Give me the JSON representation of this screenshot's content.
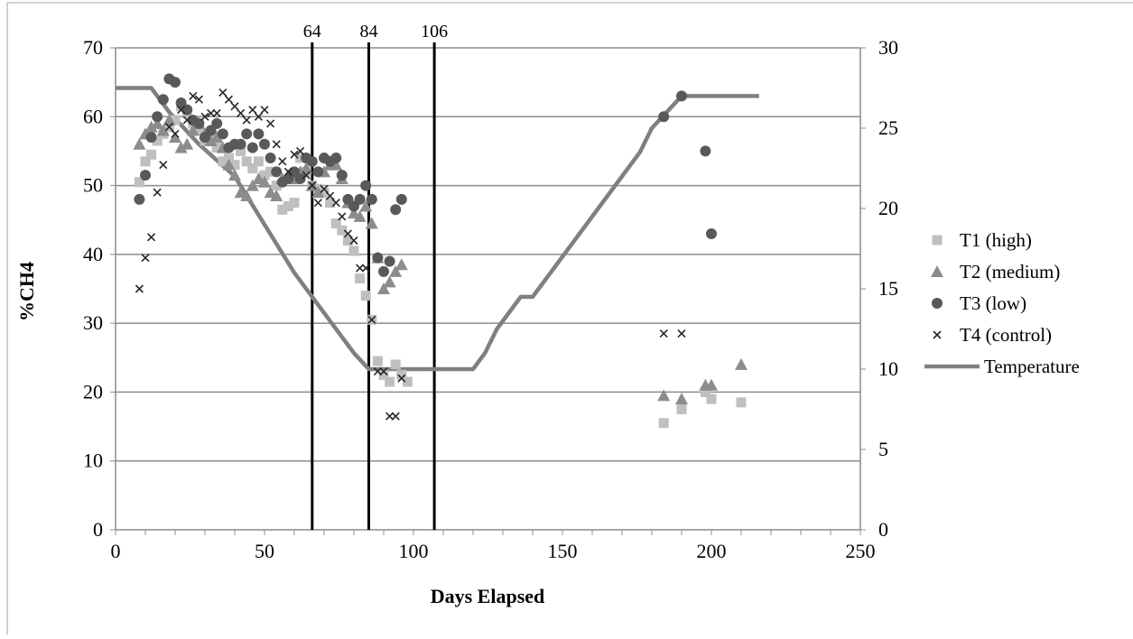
{
  "chart_data": {
    "type": "scatter",
    "xlabel": "Days Elapsed",
    "ylabel": "%CH4",
    "xlim": [
      0,
      250
    ],
    "ylim": [
      0,
      70
    ],
    "y2lim": [
      0,
      30
    ],
    "x_ticks": [
      "0",
      "50",
      "100",
      "150",
      "200",
      "250"
    ],
    "y_ticks": [
      "0",
      "10",
      "20",
      "30",
      "40",
      "50",
      "60",
      "70"
    ],
    "y2_ticks": [
      "0",
      "5",
      "10",
      "15",
      "20",
      "25",
      "30"
    ],
    "grid": "horizontal",
    "legend_position": "right",
    "vertical_markers": [
      {
        "x": 66,
        "label": "64"
      },
      {
        "x": 85,
        "label": "84"
      },
      {
        "x": 107,
        "label": "106"
      }
    ],
    "series": [
      {
        "name": "T1 (high)",
        "marker": "square",
        "color": "#bfbfbf",
        "axis": "left",
        "points": [
          [
            8,
            50.5
          ],
          [
            10,
            53.5
          ],
          [
            12,
            54.5
          ],
          [
            14,
            56.5
          ],
          [
            16,
            57.5
          ],
          [
            18,
            58.5
          ],
          [
            20,
            59.5
          ],
          [
            22,
            61.5
          ],
          [
            24,
            60.5
          ],
          [
            26,
            59
          ],
          [
            28,
            58
          ],
          [
            30,
            56.5
          ],
          [
            32,
            57
          ],
          [
            34,
            55.5
          ],
          [
            36,
            53.5
          ],
          [
            38,
            54
          ],
          [
            40,
            53
          ],
          [
            42,
            55
          ],
          [
            44,
            53.5
          ],
          [
            46,
            52.5
          ],
          [
            48,
            53.5
          ],
          [
            50,
            51.5
          ],
          [
            52,
            52
          ],
          [
            54,
            50
          ],
          [
            56,
            46.5
          ],
          [
            58,
            47
          ],
          [
            60,
            47.5
          ],
          [
            62,
            54
          ],
          [
            64,
            52
          ],
          [
            66,
            50
          ],
          [
            68,
            49.5
          ],
          [
            70,
            49
          ],
          [
            72,
            47.5
          ],
          [
            74,
            44.5
          ],
          [
            76,
            43.5
          ],
          [
            78,
            42
          ],
          [
            80,
            40.5
          ],
          [
            82,
            36.5
          ],
          [
            84,
            34
          ],
          [
            86,
            30.5
          ],
          [
            88,
            24.5
          ],
          [
            90,
            22.5
          ],
          [
            92,
            21.5
          ],
          [
            94,
            24
          ],
          [
            96,
            22.5
          ],
          [
            98,
            21.5
          ],
          [
            184,
            15.5
          ],
          [
            190,
            17.5
          ],
          [
            198,
            20
          ],
          [
            200,
            19
          ],
          [
            210,
            18.5
          ]
        ]
      },
      {
        "name": "T2 (medium)",
        "marker": "triangle",
        "color": "#8c8c8c",
        "axis": "left",
        "points": [
          [
            8,
            56
          ],
          [
            10,
            57.5
          ],
          [
            12,
            58.5
          ],
          [
            14,
            59
          ],
          [
            16,
            58
          ],
          [
            18,
            59.5
          ],
          [
            20,
            57
          ],
          [
            22,
            55.5
          ],
          [
            24,
            56
          ],
          [
            26,
            58
          ],
          [
            28,
            59
          ],
          [
            30,
            57.5
          ],
          [
            32,
            56.5
          ],
          [
            34,
            57
          ],
          [
            36,
            55.5
          ],
          [
            38,
            53
          ],
          [
            40,
            51.5
          ],
          [
            42,
            49
          ],
          [
            44,
            48.5
          ],
          [
            46,
            50
          ],
          [
            48,
            51
          ],
          [
            50,
            50.5
          ],
          [
            52,
            49
          ],
          [
            54,
            48.5
          ],
          [
            56,
            51
          ],
          [
            58,
            51.5
          ],
          [
            60,
            51
          ],
          [
            62,
            52
          ],
          [
            64,
            52.5
          ],
          [
            66,
            50
          ],
          [
            68,
            49
          ],
          [
            70,
            52
          ],
          [
            72,
            53
          ],
          [
            74,
            53
          ],
          [
            76,
            51
          ],
          [
            78,
            47.5
          ],
          [
            80,
            46
          ],
          [
            82,
            45.5
          ],
          [
            84,
            47
          ],
          [
            86,
            44.5
          ],
          [
            88,
            39.5
          ],
          [
            90,
            35
          ],
          [
            92,
            36
          ],
          [
            94,
            37.5
          ],
          [
            96,
            38.5
          ],
          [
            184,
            19.5
          ],
          [
            190,
            19
          ],
          [
            198,
            21
          ],
          [
            200,
            21
          ],
          [
            210,
            24
          ]
        ]
      },
      {
        "name": "T3 (low)",
        "marker": "circle",
        "color": "#595959",
        "axis": "left",
        "points": [
          [
            8,
            48
          ],
          [
            10,
            51.5
          ],
          [
            12,
            57
          ],
          [
            14,
            60
          ],
          [
            16,
            62.5
          ],
          [
            18,
            65.5
          ],
          [
            20,
            65
          ],
          [
            22,
            62
          ],
          [
            24,
            61
          ],
          [
            26,
            59.5
          ],
          [
            28,
            59
          ],
          [
            30,
            57
          ],
          [
            32,
            58
          ],
          [
            34,
            59
          ],
          [
            36,
            57.5
          ],
          [
            38,
            55.5
          ],
          [
            40,
            56
          ],
          [
            42,
            56
          ],
          [
            44,
            57.5
          ],
          [
            46,
            55.5
          ],
          [
            48,
            57.5
          ],
          [
            50,
            56
          ],
          [
            52,
            54
          ],
          [
            54,
            52
          ],
          [
            56,
            50.5
          ],
          [
            58,
            51
          ],
          [
            60,
            52
          ],
          [
            62,
            51
          ],
          [
            64,
            54
          ],
          [
            66,
            53.5
          ],
          [
            68,
            52
          ],
          [
            70,
            54
          ],
          [
            72,
            53.5
          ],
          [
            74,
            54
          ],
          [
            76,
            51.5
          ],
          [
            78,
            48
          ],
          [
            80,
            47
          ],
          [
            82,
            48
          ],
          [
            84,
            50
          ],
          [
            86,
            48
          ],
          [
            88,
            39.5
          ],
          [
            90,
            37.5
          ],
          [
            92,
            39
          ],
          [
            94,
            46.5
          ],
          [
            96,
            48
          ],
          [
            184,
            60
          ],
          [
            190,
            63
          ],
          [
            198,
            55
          ],
          [
            200,
            43
          ]
        ]
      },
      {
        "name": "T4 (control)",
        "marker": "x",
        "color": "#262626",
        "axis": "left",
        "points": [
          [
            8,
            35
          ],
          [
            10,
            39.5
          ],
          [
            12,
            42.5
          ],
          [
            14,
            49
          ],
          [
            16,
            53
          ],
          [
            18,
            58.5
          ],
          [
            20,
            57.5
          ],
          [
            22,
            61
          ],
          [
            24,
            59.5
          ],
          [
            26,
            63
          ],
          [
            28,
            62.5
          ],
          [
            30,
            60
          ],
          [
            32,
            60.5
          ],
          [
            34,
            60.5
          ],
          [
            36,
            63.5
          ],
          [
            38,
            62.5
          ],
          [
            40,
            61.5
          ],
          [
            42,
            60.5
          ],
          [
            44,
            59.5
          ],
          [
            46,
            61
          ],
          [
            48,
            60
          ],
          [
            50,
            61
          ],
          [
            52,
            59
          ],
          [
            54,
            56
          ],
          [
            56,
            53.5
          ],
          [
            58,
            52
          ],
          [
            60,
            54.5
          ],
          [
            62,
            55
          ],
          [
            64,
            51.5
          ],
          [
            66,
            50
          ],
          [
            68,
            47.5
          ],
          [
            70,
            49.5
          ],
          [
            72,
            48.5
          ],
          [
            74,
            47.5
          ],
          [
            76,
            45.5
          ],
          [
            78,
            43
          ],
          [
            80,
            42
          ],
          [
            82,
            38
          ],
          [
            84,
            38
          ],
          [
            86,
            30.5
          ],
          [
            88,
            23
          ],
          [
            90,
            23
          ],
          [
            92,
            16.5
          ],
          [
            94,
            16.5
          ],
          [
            96,
            22
          ],
          [
            184,
            28.5
          ],
          [
            190,
            28.5
          ]
        ]
      },
      {
        "name": "Temperature",
        "marker": "line",
        "color": "#808080",
        "axis": "right",
        "points": [
          [
            0,
            27.5
          ],
          [
            12,
            27.5
          ],
          [
            18,
            26
          ],
          [
            28,
            24
          ],
          [
            40,
            22
          ],
          [
            50,
            19
          ],
          [
            60,
            16
          ],
          [
            70,
            13.5
          ],
          [
            80,
            11
          ],
          [
            85,
            10
          ],
          [
            100,
            10
          ],
          [
            120,
            10
          ],
          [
            124,
            11
          ],
          [
            128,
            12.5
          ],
          [
            136,
            14.5
          ],
          [
            140,
            14.5
          ],
          [
            144,
            15.5
          ],
          [
            150,
            17
          ],
          [
            160,
            19.5
          ],
          [
            170,
            22
          ],
          [
            176,
            23.5
          ],
          [
            180,
            25
          ],
          [
            184,
            25.8
          ],
          [
            190,
            27
          ],
          [
            200,
            27
          ],
          [
            216,
            27
          ]
        ]
      }
    ]
  }
}
